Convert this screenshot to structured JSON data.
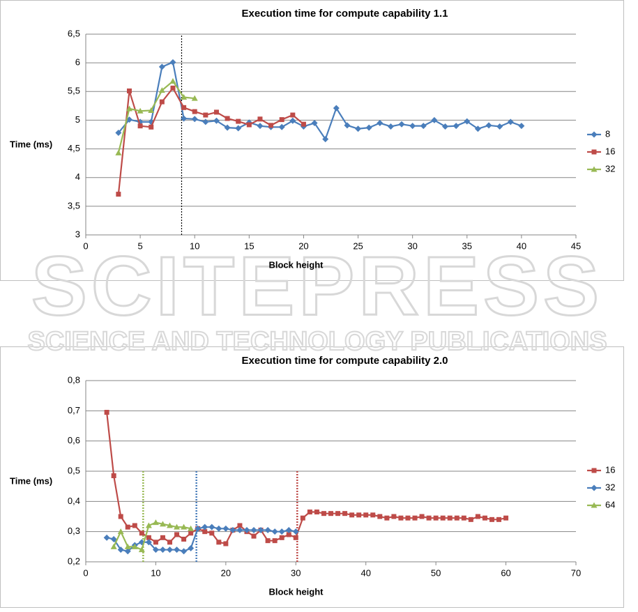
{
  "watermark": {
    "title": "SCITEPRESS",
    "subtitle": "SCIENCE AND TECHNOLOGY PUBLICATIONS"
  },
  "chart_data": [
    {
      "type": "line",
      "title": "Execution time for compute capability 1.1",
      "x_label": "Block height",
      "y_label": "Time (ms)",
      "xlim": [
        0,
        45
      ],
      "xticks": [
        0,
        5,
        10,
        15,
        20,
        25,
        30,
        35,
        40,
        45
      ],
      "ylim": [
        3,
        6.5
      ],
      "yticks": [
        3,
        {
          "value": 3.5,
          "label": "3,5"
        },
        4,
        {
          "value": 4.5,
          "label": "4,5"
        },
        5,
        {
          "value": 5.5,
          "label": "5,5"
        },
        6,
        {
          "value": 6.5,
          "label": "6,5"
        }
      ],
      "grid": true,
      "legend": "right",
      "vlines": [
        {
          "x": 8.8,
          "color": "#000000"
        }
      ],
      "series": [
        {
          "name": "8",
          "color": "#4a7ebb",
          "marker": "diamond",
          "x": [
            3,
            4,
            5,
            6,
            7,
            8,
            9,
            10,
            11,
            12,
            13,
            14,
            15,
            16,
            17,
            18,
            19,
            20,
            21,
            22,
            23,
            24,
            25,
            26,
            27,
            28,
            29,
            30,
            31,
            32,
            33,
            34,
            35,
            36,
            37,
            38,
            39,
            40
          ],
          "values": [
            4.78,
            5.01,
            4.97,
            4.97,
            5.93,
            6.01,
            5.03,
            5.02,
            4.97,
            4.99,
            4.87,
            4.86,
            4.96,
            4.9,
            4.88,
            4.88,
            4.99,
            4.89,
            4.95,
            4.67,
            5.21,
            4.91,
            4.85,
            4.87,
            4.95,
            4.89,
            4.93,
            4.9,
            4.9,
            5.0,
            4.89,
            4.9,
            4.98,
            4.85,
            4.91,
            4.89,
            4.97,
            4.9
          ]
        },
        {
          "name": "16",
          "color": "#be4b48",
          "marker": "square",
          "x": [
            3,
            4,
            5,
            6,
            7,
            8,
            9,
            10,
            11,
            12,
            13,
            14,
            15,
            16,
            17,
            18,
            19,
            20
          ],
          "values": [
            3.71,
            5.51,
            4.9,
            4.88,
            5.32,
            5.56,
            5.22,
            5.15,
            5.09,
            5.14,
            5.03,
            4.98,
            4.92,
            5.02,
            4.91,
            5.01,
            5.09,
            4.93
          ]
        },
        {
          "name": "32",
          "color": "#98b954",
          "marker": "triangle",
          "x": [
            3,
            4,
            5,
            6,
            7,
            8,
            9,
            10
          ],
          "values": [
            4.43,
            5.2,
            5.16,
            5.17,
            5.52,
            5.68,
            5.4,
            5.38
          ]
        }
      ]
    },
    {
      "type": "line",
      "title": "Execution time for compute capability 2.0",
      "x_label": "Block height",
      "y_label": "Time (ms)",
      "xlim": [
        0,
        70
      ],
      "xticks": [
        0,
        10,
        20,
        30,
        40,
        50,
        60,
        70
      ],
      "ylim": [
        0.2,
        0.8
      ],
      "yticks": [
        {
          "value": 0.2,
          "label": "0,2"
        },
        {
          "value": 0.3,
          "label": "0,3"
        },
        {
          "value": 0.4,
          "label": "0,4"
        },
        {
          "value": 0.5,
          "label": "0,5"
        },
        {
          "value": 0.6,
          "label": "0,6"
        },
        {
          "value": 0.7,
          "label": "0,7"
        },
        {
          "value": 0.8,
          "label": "0,8"
        }
      ],
      "grid": true,
      "legend": "right",
      "vlines": [
        {
          "x": 8.2,
          "color": "#98b954"
        },
        {
          "x": 15.8,
          "color": "#4a7ebb"
        },
        {
          "x": 30.2,
          "color": "#be4b48"
        }
      ],
      "series": [
        {
          "name": "16",
          "color": "#be4b48",
          "marker": "square",
          "x": [
            3,
            4,
            5,
            6,
            7,
            8,
            9,
            10,
            11,
            12,
            13,
            14,
            15,
            16,
            17,
            18,
            19,
            20,
            21,
            22,
            23,
            24,
            25,
            26,
            27,
            28,
            29,
            30,
            31,
            32,
            33,
            34,
            35,
            36,
            37,
            38,
            39,
            40,
            41,
            42,
            43,
            44,
            45,
            46,
            47,
            48,
            49,
            50,
            51,
            52,
            53,
            54,
            55,
            56,
            57,
            58,
            59,
            60
          ],
          "values": [
            0.695,
            0.485,
            0.35,
            0.315,
            0.32,
            0.295,
            0.28,
            0.265,
            0.28,
            0.265,
            0.29,
            0.275,
            0.295,
            0.31,
            0.3,
            0.295,
            0.265,
            0.26,
            0.305,
            0.32,
            0.3,
            0.285,
            0.305,
            0.27,
            0.27,
            0.28,
            0.29,
            0.28,
            0.345,
            0.365,
            0.365,
            0.36,
            0.36,
            0.36,
            0.36,
            0.355,
            0.355,
            0.355,
            0.355,
            0.35,
            0.345,
            0.35,
            0.345,
            0.345,
            0.345,
            0.35,
            0.345,
            0.345,
            0.345,
            0.345,
            0.345,
            0.345,
            0.34,
            0.35,
            0.345,
            0.34,
            0.34,
            0.345
          ]
        },
        {
          "name": "32",
          "color": "#4a7ebb",
          "marker": "diamond",
          "x": [
            3,
            4,
            5,
            6,
            7,
            8,
            9,
            10,
            11,
            12,
            13,
            14,
            15,
            16,
            17,
            18,
            19,
            20,
            21,
            22,
            23,
            24,
            25,
            26,
            27,
            28,
            29,
            30
          ],
          "values": [
            0.28,
            0.275,
            0.24,
            0.235,
            0.255,
            0.265,
            0.265,
            0.24,
            0.24,
            0.24,
            0.24,
            0.235,
            0.245,
            0.31,
            0.315,
            0.315,
            0.31,
            0.31,
            0.305,
            0.305,
            0.305,
            0.305,
            0.305,
            0.305,
            0.3,
            0.3,
            0.305,
            0.3
          ]
        },
        {
          "name": "64",
          "color": "#98b954",
          "marker": "triangle",
          "x": [
            4,
            5,
            6,
            7,
            8,
            9,
            10,
            11,
            12,
            13,
            14,
            15
          ],
          "values": [
            0.25,
            0.3,
            0.25,
            0.25,
            0.24,
            0.32,
            0.33,
            0.325,
            0.32,
            0.315,
            0.315,
            0.31
          ]
        }
      ]
    }
  ]
}
